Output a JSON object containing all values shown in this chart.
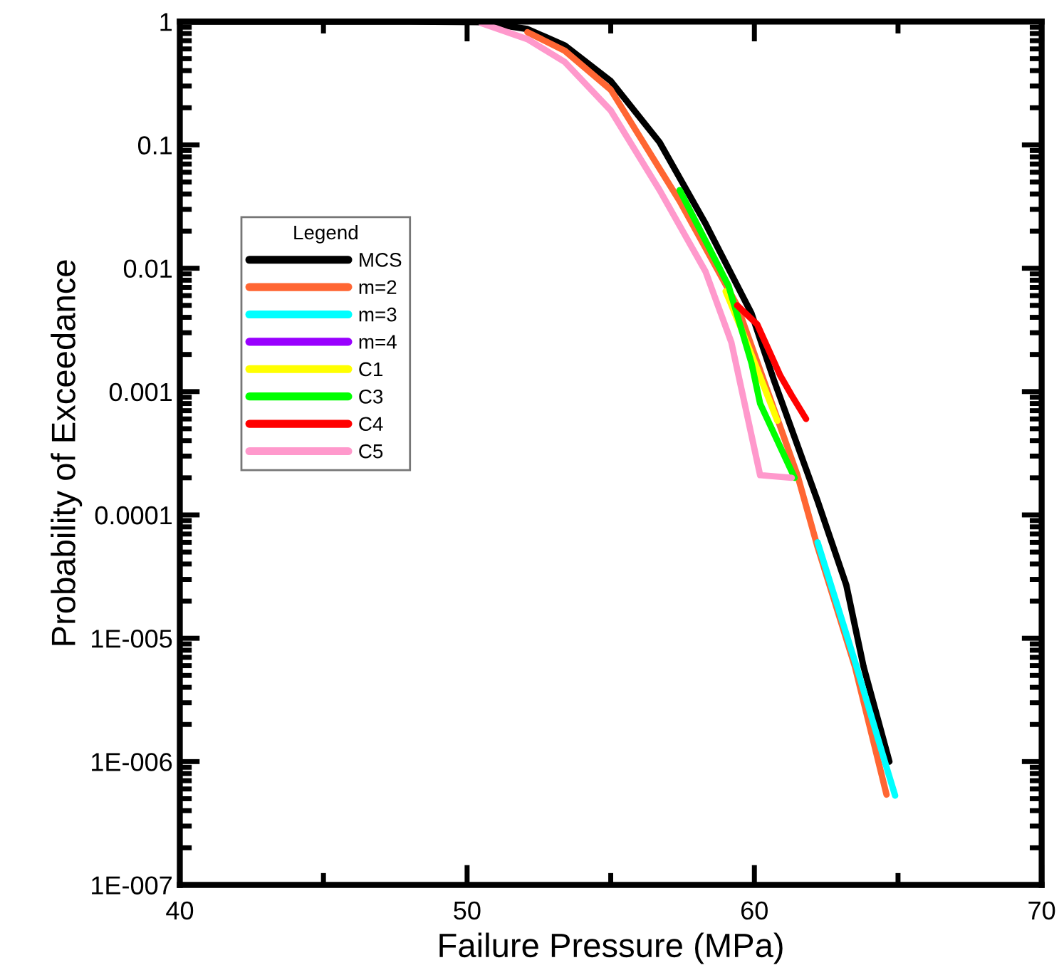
{
  "chart_data": {
    "type": "line",
    "xlabel": "Failure Pressure (MPa)",
    "ylabel": "Probability of Exceedance",
    "legend_title": "Legend",
    "xlim": [
      40,
      70
    ],
    "xticks": [
      40,
      50,
      60,
      70
    ],
    "ylim": [
      1e-07,
      1
    ],
    "log": "y",
    "yticks": [
      {
        "value": 1e-07,
        "label": "1E-007"
      },
      {
        "value": 1e-06,
        "label": "1E-006"
      },
      {
        "value": 1e-05,
        "label": "1E-005"
      },
      0.0001,
      0.001,
      0.01,
      0.1,
      1
    ],
    "grid": false,
    "legend": "top left",
    "line_style": "solid",
    "marker": "none",
    "series": [
      {
        "name": "MCS",
        "color": "#000000",
        "x": [
          40,
          48,
          50.5,
          52.1,
          53.4,
          55.0,
          56.7,
          58.3,
          59.9,
          60.7,
          62.2,
          63.2,
          63.8,
          64.7
        ],
        "values": [
          1,
          1,
          0.99,
          0.87,
          0.64,
          0.33,
          0.105,
          0.023,
          0.0043,
          0.0012,
          0.00013,
          2.7e-05,
          5.9e-06,
          1e-06
        ]
      },
      {
        "name": "m=2",
        "color": "#ff6633",
        "x": [
          52.1,
          53.4,
          55.0,
          57.4,
          59.4,
          61.5,
          62.2,
          63.5,
          64.6
        ],
        "values": [
          0.82,
          0.58,
          0.28,
          0.035,
          0.005,
          0.00021,
          5.5e-05,
          5.9e-06,
          5.4e-07
        ]
      },
      {
        "name": "m=3",
        "color": "#00ffff",
        "x": [
          62.2,
          63.5,
          64.6,
          64.9
        ],
        "values": [
          6e-05,
          6.5e-06,
          9e-07,
          5.3e-07
        ]
      },
      {
        "name": "m=4",
        "color": "#9900ff"
      },
      {
        "name": "C1",
        "color": "#ffff00",
        "x": [
          59.0,
          59.6,
          60.8
        ],
        "values": [
          0.0065,
          0.003,
          0.00058
        ]
      },
      {
        "name": "C3",
        "color": "#00ff00",
        "x": [
          57.4,
          59.1,
          59.9,
          60.2,
          61.4
        ],
        "values": [
          0.043,
          0.0072,
          0.0017,
          0.0008,
          0.0002
        ]
      },
      {
        "name": "C4",
        "color": "#ff0000",
        "x": [
          59.4,
          60.1,
          60.9,
          61.3,
          61.8
        ],
        "values": [
          0.005,
          0.0035,
          0.00135,
          0.00093,
          0.0006
        ]
      },
      {
        "name": "C5",
        "color": "#ff99cc",
        "x": [
          50.5,
          52.1,
          53.4,
          55.0,
          56.7,
          58.3,
          59.2,
          60.2,
          61.3
        ],
        "values": [
          0.97,
          0.72,
          0.47,
          0.19,
          0.043,
          0.0094,
          0.0025,
          0.00021,
          0.0002
        ]
      }
    ]
  }
}
